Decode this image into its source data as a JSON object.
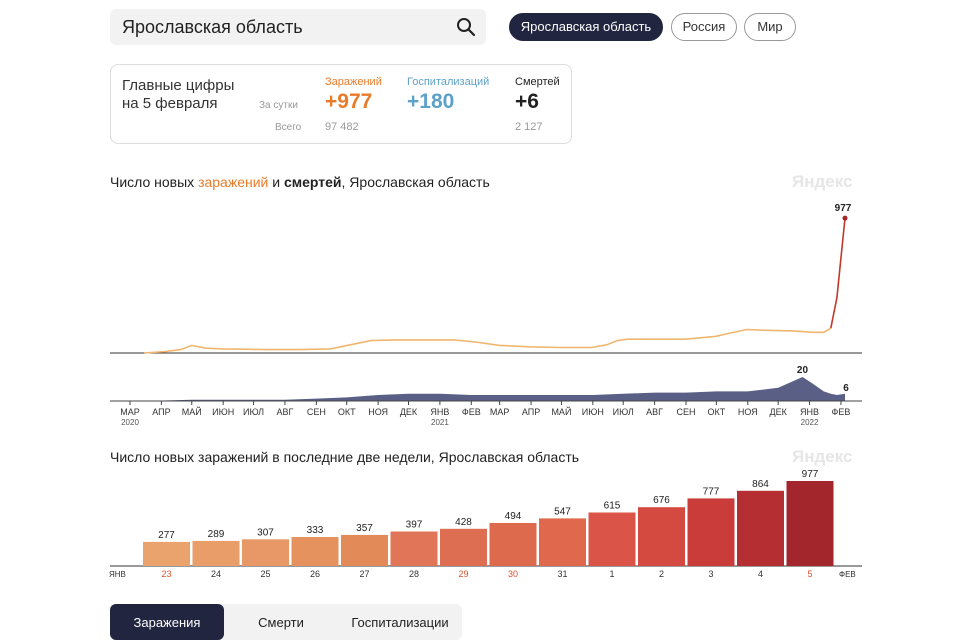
{
  "search": {
    "value": "Ярославская область"
  },
  "region_pills": [
    {
      "label": "Ярославская область",
      "active": true
    },
    {
      "label": "Россия",
      "active": false
    },
    {
      "label": "Мир",
      "active": false
    }
  ],
  "summary": {
    "title_line1": "Главные цифры",
    "title_line2": "на 5 февраля",
    "per_day_label": "За сутки",
    "total_label": "Всего",
    "columns": [
      {
        "label": "Заражений",
        "per_day": "+977",
        "total": "97 482",
        "color": "#e87b2a"
      },
      {
        "label": "Госпитализаций",
        "per_day": "+180",
        "total": "",
        "color": "#5ea1c9"
      },
      {
        "label": "Смертей",
        "per_day": "+6",
        "total": "2 127",
        "color": "#222222"
      }
    ]
  },
  "watermark": "Яндекс",
  "chart1": {
    "title_part1": "Число новых ",
    "title_part2": "заражений",
    "title_part3": " и ",
    "title_part4": "смертей",
    "title_part5": ", Ярославская область"
  },
  "chart2": {
    "title": "Число новых заражений в последние две недели, Ярославская область"
  },
  "tabs": [
    {
      "label": "Заражения",
      "active": true
    },
    {
      "label": "Смерти",
      "active": false
    },
    {
      "label": "Госпитализации",
      "active": false
    }
  ],
  "colors": {
    "infections_line": "#f0b66e",
    "infections_last": "#c0392b",
    "deaths_area": "#5a5f86",
    "dark_navy": "#21253f",
    "weekend_label": "#d9532c"
  },
  "chart_data": [
    {
      "type": "line",
      "title": "Число новых заражений и смертей, Ярославская область",
      "x_axis_ticks": [
        {
          "label": "МАР",
          "year": "2020"
        },
        {
          "label": "АПР"
        },
        {
          "label": "МАЙ"
        },
        {
          "label": "ИЮН"
        },
        {
          "label": "ИЮЛ"
        },
        {
          "label": "АВГ"
        },
        {
          "label": "СЕН"
        },
        {
          "label": "ОКТ"
        },
        {
          "label": "НОЯ"
        },
        {
          "label": "ДЕК"
        },
        {
          "label": "ЯНВ",
          "year": "2021"
        },
        {
          "label": "ФЕВ"
        },
        {
          "label": "МАР"
        },
        {
          "label": "АПР"
        },
        {
          "label": "МАЙ"
        },
        {
          "label": "ИЮН"
        },
        {
          "label": "ИЮЛ"
        },
        {
          "label": "АВГ"
        },
        {
          "label": "СЕН"
        },
        {
          "label": "ОКТ"
        },
        {
          "label": "НОЯ"
        },
        {
          "label": "ДЕК"
        },
        {
          "label": "ЯНВ",
          "year": "2022"
        },
        {
          "label": "ФЕВ"
        }
      ],
      "series": [
        {
          "x": [
            "2020-03-15",
            "2020-04-05",
            "2020-04-20",
            "2020-05-01",
            "2020-05-15",
            "2020-06-01",
            "2020-06-15",
            "2020-07-15",
            "2020-08-15",
            "2020-09-15",
            "2020-10-05",
            "2020-10-25",
            "2020-11-15",
            "2020-12-15",
            "2021-01-15",
            "2021-02-05",
            "2021-03-01",
            "2021-03-31",
            "2021-04-30",
            "2021-05-31",
            "2021-06-15",
            "2021-06-25",
            "2021-07-05",
            "2021-07-31",
            "2021-08-31",
            "2021-09-30",
            "2021-10-15",
            "2021-10-31",
            "2021-11-15",
            "2021-12-15",
            "2022-01-05",
            "2022-01-15",
            "2022-01-22",
            "2022-01-28",
            "2022-02-05"
          ],
          "values": [
            0,
            10,
            25,
            55,
            35,
            30,
            28,
            25,
            25,
            30,
            60,
            90,
            95,
            95,
            95,
            80,
            55,
            45,
            40,
            40,
            60,
            90,
            100,
            100,
            100,
            120,
            145,
            170,
            165,
            160,
            150,
            150,
            180,
            400,
            977
          ]
        },
        {
          "x": [
            "2020-03-15",
            "2020-05-01",
            "2020-06-01",
            "2020-07-01",
            "2020-08-01",
            "2020-09-01",
            "2020-10-01",
            "2020-11-01",
            "2020-12-01",
            "2021-01-01",
            "2021-02-01",
            "2021-03-01",
            "2021-04-01",
            "2021-05-01",
            "2021-06-01",
            "2021-07-01",
            "2021-08-01",
            "2021-09-01",
            "2021-10-01",
            "2021-11-01",
            "2021-12-01",
            "2021-12-25",
            "2022-01-05",
            "2022-01-15",
            "2022-01-22",
            "2022-01-28",
            "2022-02-05"
          ],
          "values": [
            0,
            1,
            1,
            1,
            1,
            2,
            3,
            5,
            6,
            6,
            5,
            5,
            5,
            5,
            5,
            6,
            7,
            7,
            8,
            8,
            11,
            20,
            14,
            8,
            6,
            5,
            6
          ]
        }
      ],
      "annotations": [
        "977",
        "20",
        "6"
      ]
    },
    {
      "type": "bar",
      "title": "Число новых заражений в последние две недели, Ярославская область",
      "categories": [
        "23",
        "24",
        "25",
        "26",
        "27",
        "28",
        "29",
        "30",
        "31",
        "1",
        "2",
        "3",
        "4",
        "5"
      ],
      "weekend_categories": [
        "23",
        "29",
        "30",
        "5"
      ],
      "values": [
        277,
        289,
        307,
        333,
        357,
        397,
        428,
        494,
        547,
        615,
        676,
        777,
        864,
        977
      ],
      "month_labels": [
        "ЯНВ",
        "ФЕВ"
      ],
      "bar_colors": [
        "#eaa36c",
        "#e99e69",
        "#e89866",
        "#e6925f",
        "#e38a59",
        "#e07657",
        "#de6e52",
        "#de6a4e",
        "#e0694d",
        "#da5447",
        "#d44a40",
        "#c93c39",
        "#b52e32",
        "#a3262d"
      ]
    }
  ]
}
